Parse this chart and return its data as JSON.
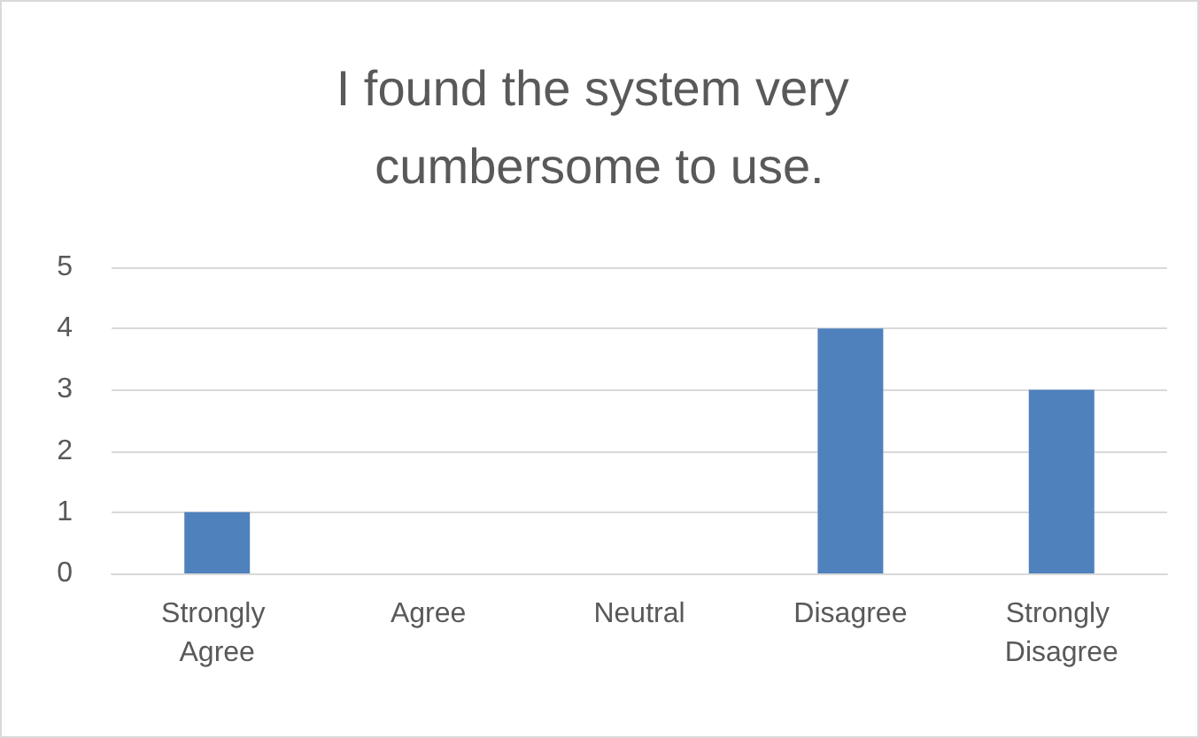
{
  "chart_data": {
    "type": "bar",
    "title": "I found the system very cumbersome to use.",
    "categories": [
      "Strongly Agree",
      "Agree",
      "Neutral",
      "Disagree",
      "Strongly Disagree"
    ],
    "values": [
      1,
      0,
      0,
      4,
      3
    ],
    "color": "#4f81bd",
    "ylim": [
      0,
      5
    ],
    "yticks": [
      0,
      1,
      2,
      3,
      4,
      5
    ],
    "grid": "y",
    "legend": false
  }
}
